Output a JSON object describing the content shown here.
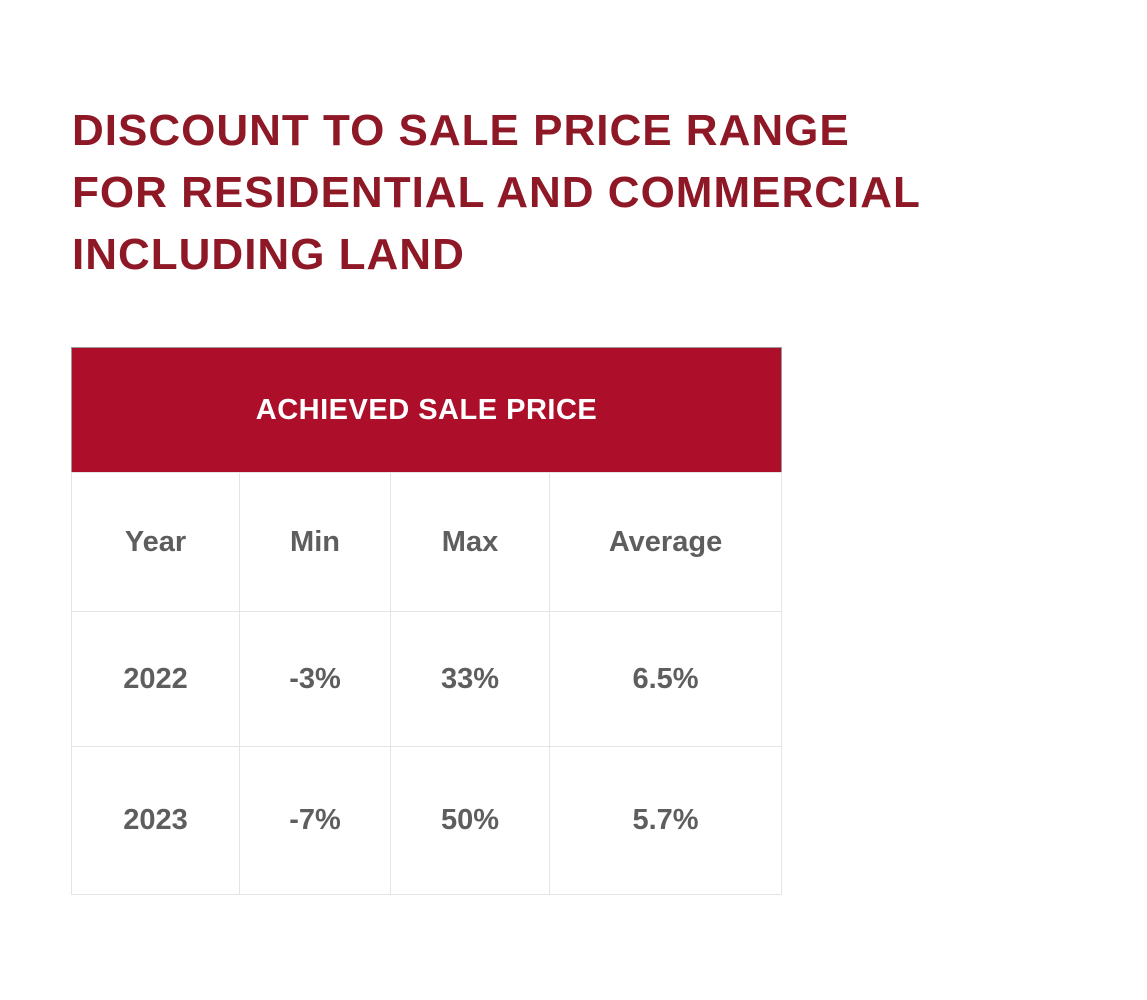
{
  "header": {
    "title_lines": [
      "DISCOUNT TO SALE PRICE RANGE",
      "FOR RESIDENTIAL AND COMMERCIAL",
      "INCLUDING LAND"
    ]
  },
  "table": {
    "caption": "ACHIEVED SALE PRICE",
    "columns": [
      "Year",
      "Min",
      "Max",
      "Average"
    ],
    "rows": [
      [
        "2022",
        "-3%",
        "33%",
        "6.5%"
      ],
      [
        "2023",
        "-7%",
        "50%",
        "5.7%"
      ]
    ]
  }
}
